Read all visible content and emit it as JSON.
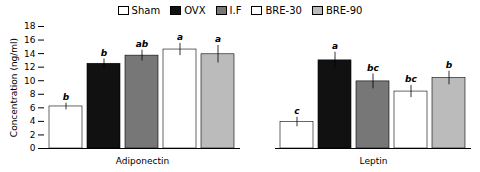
{
  "chart_data": {
    "type": "bar",
    "categories": [
      "Adiponectin",
      "Leptin"
    ],
    "series": [
      {
        "name": "Sham",
        "color": "white",
        "values": [
          6.2,
          3.9
        ],
        "errors": [
          0.5,
          0.7
        ],
        "annotations": [
          "b",
          "c"
        ]
      },
      {
        "name": "OVX",
        "color": "#111111",
        "values": [
          12.5,
          13.0
        ],
        "errors": [
          0.7,
          1.2
        ],
        "annotations": [
          "b",
          "a"
        ]
      },
      {
        "name": "I.F",
        "color": "#777777",
        "values": [
          13.7,
          9.9
        ],
        "errors": [
          0.8,
          1.1
        ],
        "annotations": [
          "ab",
          "bc"
        ]
      },
      {
        "name": "BRE-30",
        "color": "white",
        "values": [
          14.6,
          8.4
        ],
        "errors": [
          0.9,
          0.9
        ],
        "annotations": [
          "a",
          "bc"
        ]
      },
      {
        "name": "BRE-90",
        "color": "#bbbbbb",
        "values": [
          13.9,
          10.4
        ],
        "errors": [
          1.3,
          1.0
        ],
        "annotations": [
          "a",
          "b"
        ]
      }
    ],
    "ylabel": "Concentration (ng/ml)",
    "ylim": [
      0,
      18
    ],
    "yticks": [
      0,
      2,
      4,
      6,
      8,
      10,
      12,
      14,
      16,
      18
    ],
    "legend": "top",
    "grid": false
  }
}
